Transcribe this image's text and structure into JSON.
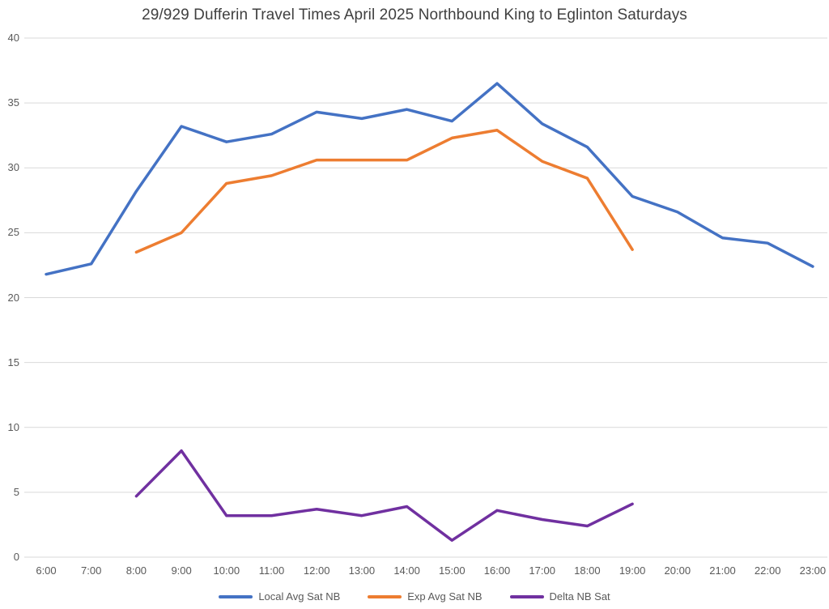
{
  "chart_data": {
    "type": "line",
    "title": "29/929 Dufferin Travel Times April 2025 Northbound King to Eglinton Saturdays",
    "categories": [
      "6:00",
      "7:00",
      "8:00",
      "9:00",
      "10:00",
      "11:00",
      "12:00",
      "13:00",
      "14:00",
      "15:00",
      "16:00",
      "17:00",
      "18:00",
      "19:00",
      "20:00",
      "21:00",
      "22:00",
      "23:00"
    ],
    "series": [
      {
        "name": "Local Avg Sat NB",
        "color": "#4472C4",
        "start_index": 0,
        "values": [
          21.8,
          22.6,
          28.2,
          33.2,
          32.0,
          32.6,
          34.3,
          33.8,
          34.5,
          33.6,
          36.5,
          33.4,
          31.6,
          27.8,
          26.6,
          24.6,
          24.2,
          22.4
        ]
      },
      {
        "name": "Exp Avg Sat NB",
        "color": "#ED7D31",
        "start_index": 2,
        "values": [
          23.5,
          25.0,
          28.8,
          29.4,
          30.6,
          30.6,
          30.6,
          32.3,
          32.9,
          30.5,
          29.2,
          23.7
        ]
      },
      {
        "name": "Delta NB Sat",
        "color": "#7030A0",
        "start_index": 2,
        "values": [
          4.7,
          8.2,
          3.2,
          3.2,
          3.7,
          3.2,
          3.9,
          1.3,
          3.6,
          2.9,
          2.4,
          4.1
        ]
      }
    ],
    "ylim": [
      0,
      40
    ],
    "yticks": [
      0,
      5,
      10,
      15,
      20,
      25,
      30,
      35,
      40
    ],
    "grid": true,
    "gridline_color": "#D9D9D9",
    "legend_position": "bottom",
    "xlabel": "",
    "ylabel": ""
  }
}
